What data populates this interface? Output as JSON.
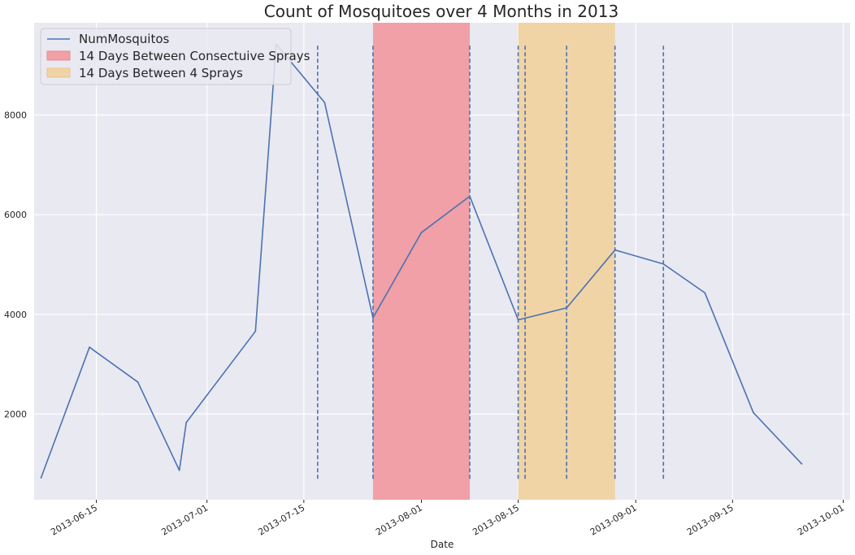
{
  "chart_data": {
    "type": "line",
    "title": "Count of Mosquitoes over 4 Months in 2013",
    "xlabel": "Date",
    "ylabel": "",
    "x_axis_type": "date",
    "xlim": [
      "2013-06-06",
      "2013-10-02"
    ],
    "ylim": [
      280,
      9850
    ],
    "x_ticks": [
      "2013-06-15",
      "2013-07-01",
      "2013-07-15",
      "2013-08-01",
      "2013-08-15",
      "2013-09-01",
      "2013-09-15",
      "2013-10-01"
    ],
    "y_ticks": [
      2000,
      4000,
      6000,
      8000
    ],
    "grid": true,
    "background_color": "#e9e9f2",
    "legend_position": "top-left",
    "series": [
      {
        "name": "NumMosquitos",
        "color": "#4c72b0",
        "x": [
          "2013-06-07",
          "2013-06-14",
          "2013-06-21",
          "2013-06-27",
          "2013-06-28",
          "2013-07-08",
          "2013-07-11",
          "2013-07-18",
          "2013-07-25",
          "2013-08-01",
          "2013-08-08",
          "2013-08-15",
          "2013-08-22",
          "2013-08-29",
          "2013-09-05",
          "2013-09-11",
          "2013-09-18",
          "2013-09-25"
        ],
        "values": [
          720,
          3340,
          2640,
          870,
          1830,
          3660,
          9420,
          8250,
          3930,
          5640,
          6370,
          3890,
          4130,
          5290,
          5010,
          4430,
          2030,
          1000
        ]
      }
    ],
    "shaded_regions": [
      {
        "name": "14 Days Between Consectuive Sprays",
        "start": "2013-07-25",
        "end": "2013-08-08",
        "color": "#f0a0a6"
      },
      {
        "name": "14 Days Between 4 Sprays",
        "start": "2013-08-15",
        "end": "2013-08-29",
        "color": "#f0d4a6"
      }
    ],
    "vertical_lines": {
      "color": "#4c72b0",
      "style": "dashed",
      "ymin": 700,
      "ymax": 9400,
      "dates": [
        "2013-07-17",
        "2013-07-25",
        "2013-08-08",
        "2013-08-15",
        "2013-08-16",
        "2013-08-22",
        "2013-08-29",
        "2013-09-05"
      ]
    }
  }
}
